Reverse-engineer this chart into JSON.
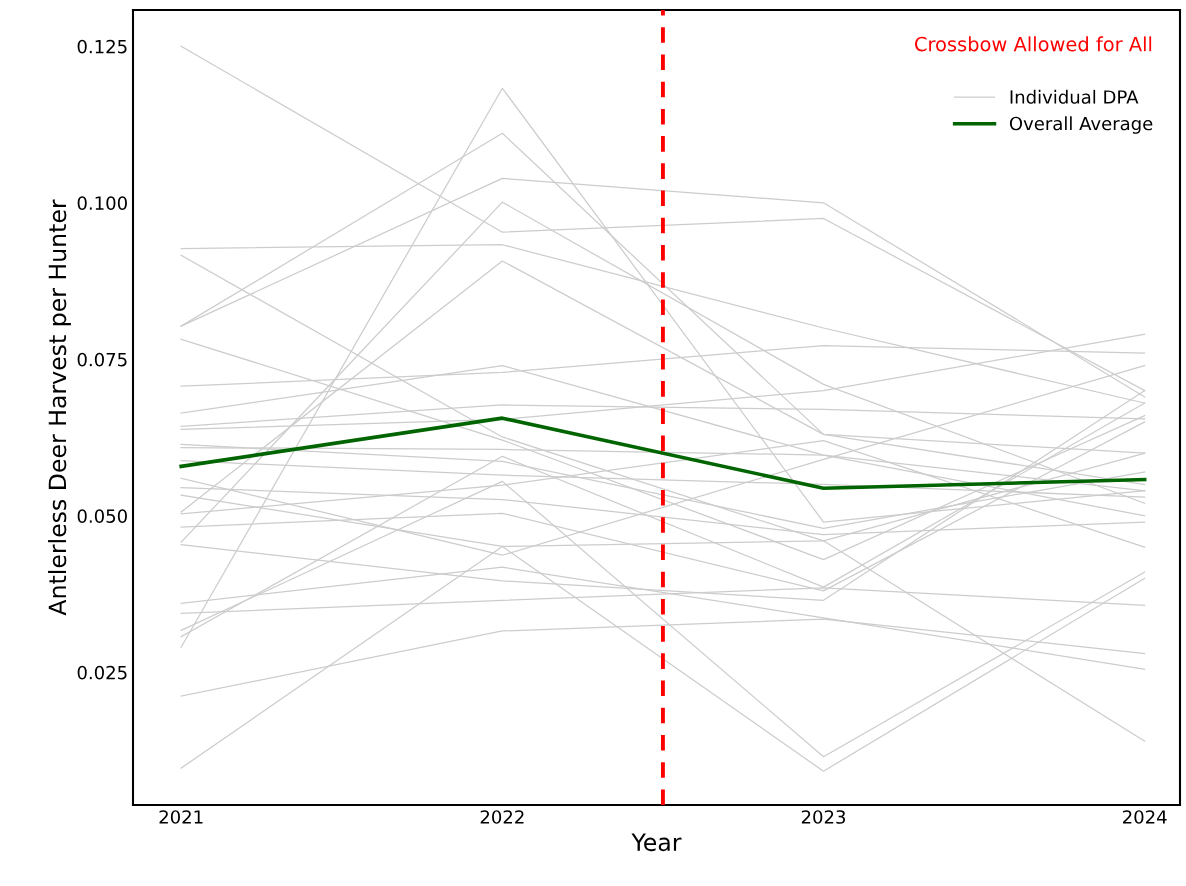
{
  "chart_data": {
    "type": "line",
    "xlabel": "Year",
    "ylabel": "Antlerless Deer Harvest per Hunter",
    "x": [
      2021,
      2022,
      2023,
      2024
    ],
    "xlim": [
      2020.85,
      2024.11
    ],
    "xticks": [
      2021,
      2022,
      2023,
      2024
    ],
    "ylim": [
      0.0038,
      0.1308
    ],
    "yticks": [
      {
        "value": 0.025,
        "label": "0.025"
      },
      {
        "value": 0.05,
        "label": "0.050"
      },
      {
        "value": 0.075,
        "label": "0.075"
      },
      {
        "value": 0.1,
        "label": "0.100"
      },
      {
        "value": 0.125,
        "label": "0.125"
      }
    ],
    "grid": false,
    "legend": "top right",
    "ref_lines": [
      {
        "axis": "x",
        "value": 2022.5,
        "label": "Crossbow Allowed for All",
        "color": "#ff0000",
        "line_style": "dashed"
      }
    ],
    "series": [
      {
        "name": "Individual DPA",
        "color": "#cccccc",
        "values": [
          0.125,
          0.0953,
          0.0975,
          0.07
        ]
      },
      {
        "color": "#cccccc",
        "values": [
          0.029,
          0.1183,
          0.049,
          0.054
        ]
      },
      {
        "color": "#cccccc",
        "values": [
          0.0803,
          0.1111,
          0.063,
          0.055
        ]
      },
      {
        "color": "#cccccc",
        "values": [
          0.0803,
          0.1039,
          0.1,
          0.069
        ]
      },
      {
        "color": "#cccccc",
        "values": [
          0.0927,
          0.0933,
          0.08,
          0.068
        ]
      },
      {
        "color": "#cccccc",
        "values": [
          0.0916,
          0.0626,
          0.046,
          0.014
        ]
      },
      {
        "color": "#cccccc",
        "values": [
          0.0458,
          0.1001,
          0.071,
          0.052
        ]
      },
      {
        "color": "#cccccc",
        "values": [
          0.0506,
          0.0907,
          0.063,
          0.06
        ]
      },
      {
        "color": "#cccccc",
        "values": [
          0.0782,
          0.0621,
          0.043,
          0.066
        ]
      },
      {
        "color": "#cccccc",
        "values": [
          0.0707,
          0.0729,
          0.0772,
          0.076
        ]
      },
      {
        "color": "#cccccc",
        "values": [
          0.0664,
          0.074,
          0.0597,
          0.05
        ]
      },
      {
        "color": "#cccccc",
        "values": [
          0.0643,
          0.0677,
          0.067,
          0.0655
        ]
      },
      {
        "color": "#cccccc",
        "values": [
          0.0638,
          0.0654,
          0.07,
          0.079
        ]
      },
      {
        "color": "#cccccc",
        "values": [
          0.0614,
          0.0587,
          0.048,
          0.057
        ]
      },
      {
        "color": "#cccccc",
        "values": [
          0.0609,
          0.0606,
          0.0597,
          0.054
        ]
      },
      {
        "color": "#cccccc",
        "values": [
          0.0588,
          0.0565,
          0.055,
          0.053
        ]
      },
      {
        "color": "#cccccc",
        "values": [
          0.056,
          0.0437,
          0.059,
          0.074
        ]
      },
      {
        "color": "#cccccc",
        "values": [
          0.0545,
          0.0526,
          0.047,
          0.049
        ]
      },
      {
        "color": "#cccccc",
        "values": [
          0.0533,
          0.0451,
          0.046,
          0.06
        ]
      },
      {
        "color": "#cccccc",
        "values": [
          0.0503,
          0.0549,
          0.062,
          0.045
        ]
      },
      {
        "color": "#cccccc",
        "values": [
          0.0482,
          0.0504,
          0.038,
          0.065
        ]
      },
      {
        "color": "#cccccc",
        "values": [
          0.0454,
          0.0396,
          0.0365,
          0.07
        ]
      },
      {
        "color": "#cccccc",
        "values": [
          0.036,
          0.0418,
          0.0337,
          0.0255
        ]
      },
      {
        "color": "#cccccc",
        "values": [
          0.0344,
          0.0365,
          0.0385,
          0.0357
        ]
      },
      {
        "color": "#cccccc",
        "values": [
          0.0317,
          0.0555,
          0.0115,
          0.041
        ]
      },
      {
        "color": "#cccccc",
        "values": [
          0.0307,
          0.0595,
          0.0386,
          0.068
        ]
      },
      {
        "color": "#cccccc",
        "values": [
          0.0212,
          0.0316,
          0.0335,
          0.028
        ]
      },
      {
        "color": "#cccccc",
        "values": [
          0.0097,
          0.0451,
          0.0092,
          0.04
        ]
      },
      {
        "name": "Overall Average",
        "color": "#006400",
        "values": [
          0.0579,
          0.0656,
          0.0544,
          0.0558
        ]
      }
    ]
  }
}
